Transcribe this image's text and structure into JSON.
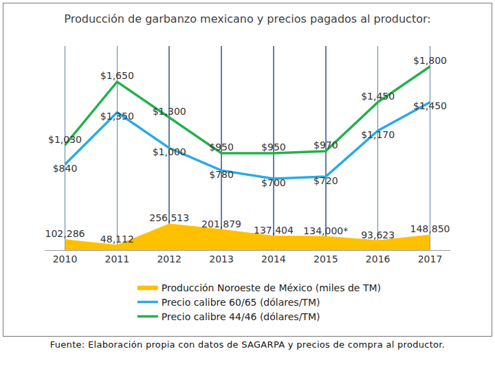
{
  "chart_data": {
    "type": "line",
    "title": "Producción de garbanzo mexicano y precios pagados al productor:",
    "source": "Fuente: Elaboración propia con datos de SAGARPA y precios de compra al productor.",
    "categories": [
      "2010",
      "2011",
      "2012",
      "2013",
      "2014",
      "2015",
      "2016",
      "2017"
    ],
    "series": [
      {
        "name": "Producción Noroeste de México (miles de TM)",
        "type": "area",
        "axis": "y2",
        "color": "#ffc000",
        "values": [
          102286,
          48112,
          256513,
          201879,
          137404,
          134000,
          93623,
          148850
        ],
        "value_labels": [
          "102,286",
          "48,112",
          "256,513",
          "201,879",
          "137,404",
          "134,000*",
          "93,623",
          "148,850"
        ]
      },
      {
        "name": "Precio calibre 60/65 (dólares/TM)",
        "type": "line",
        "color": "#29abe2",
        "values": [
          840,
          1350,
          1000,
          780,
          700,
          720,
          1170,
          1450
        ],
        "value_labels": [
          "$840",
          "$1,350",
          "$1,000",
          "$780",
          "$700",
          "$720",
          "$1,170",
          "$1,450"
        ]
      },
      {
        "name": "Precio calibre 44/46 (dólares/TM)",
        "type": "line",
        "color": "#22b14c",
        "values": [
          1030,
          1650,
          1300,
          950,
          950,
          970,
          1450,
          1800
        ],
        "value_labels": [
          "$1,030",
          "$1,650",
          "$1,300",
          "$950",
          "$950",
          "$970",
          "$1,450",
          "$1,800"
        ]
      }
    ],
    "ylim": [
      0,
      2000
    ],
    "y2lim": [
      0,
      2000000
    ],
    "data_labels": true,
    "tick_labels": "x",
    "grid": "x",
    "legend": "bottom"
  }
}
